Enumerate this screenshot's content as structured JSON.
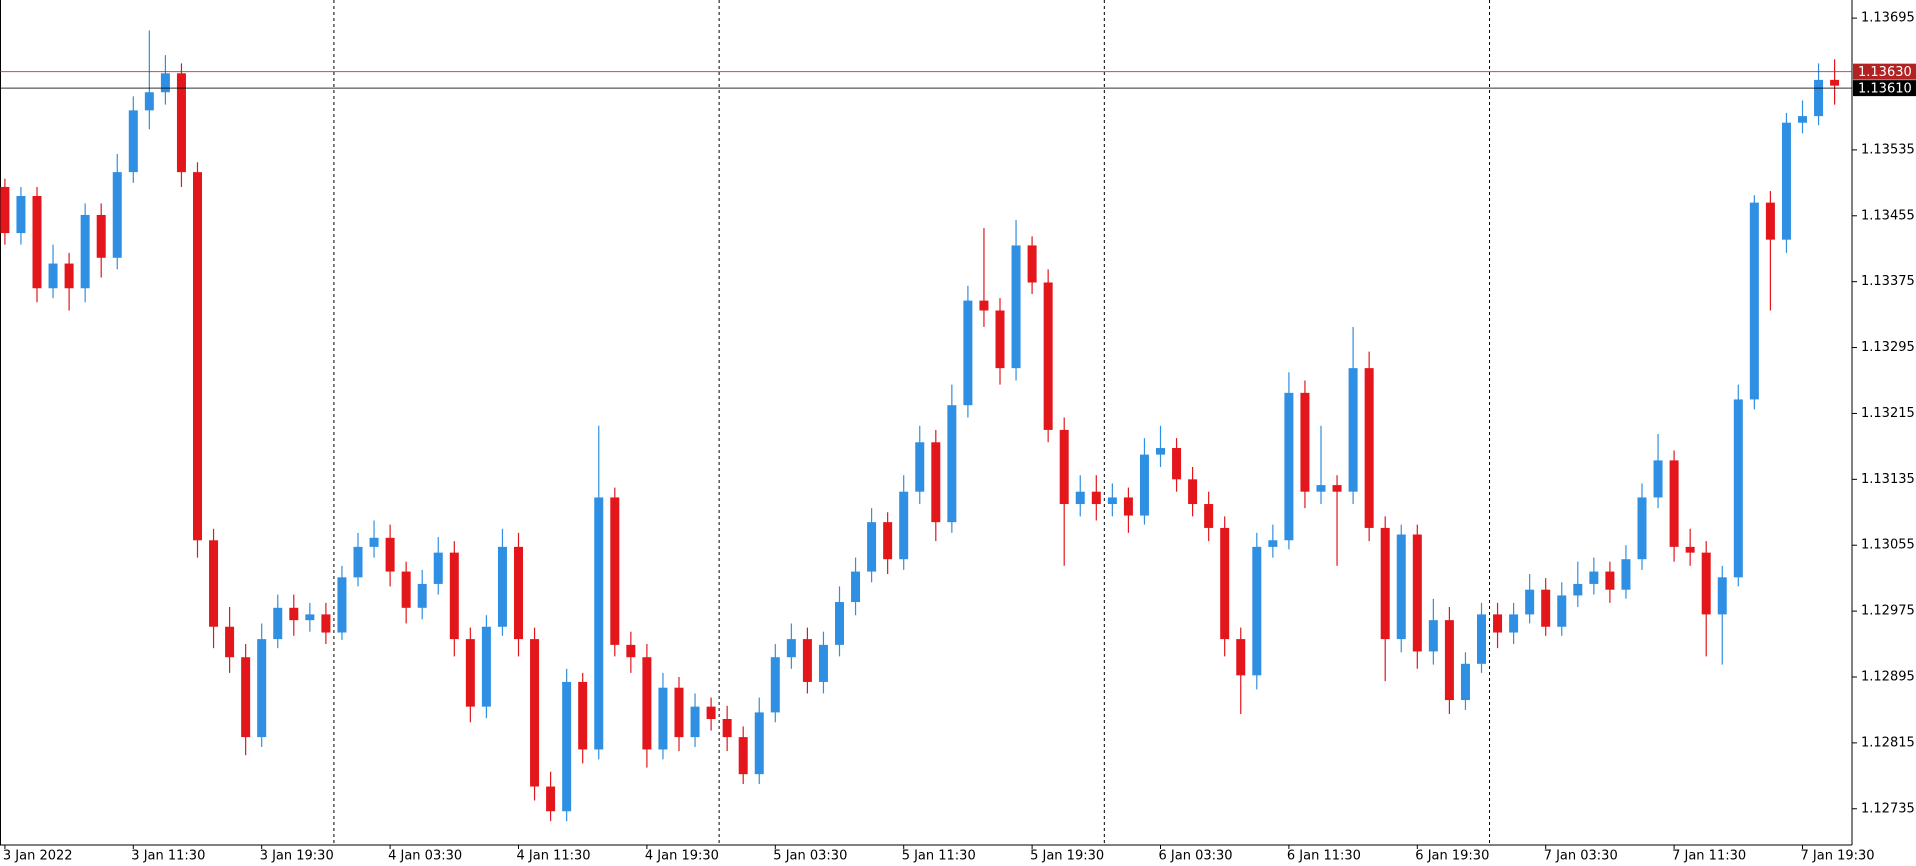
{
  "chart_data": {
    "type": "candlestick",
    "categories": [
      "3 Jan 2022",
      null,
      null,
      null,
      null,
      null,
      null,
      null,
      "3 Jan 11:30",
      null,
      null,
      null,
      null,
      null,
      null,
      null,
      "3 Jan 19:30",
      null,
      null,
      null,
      null,
      null,
      null,
      null,
      "4 Jan 03:30",
      null,
      null,
      null,
      null,
      null,
      null,
      null,
      "4 Jan 11:30",
      null,
      null,
      null,
      null,
      null,
      null,
      null,
      "4 Jan 19:30",
      null,
      null,
      null,
      null,
      null,
      null,
      null,
      "5 Jan 03:30",
      null,
      null,
      null,
      null,
      null,
      null,
      null,
      "5 Jan 11:30",
      null,
      null,
      null,
      null,
      null,
      null,
      null,
      "5 Jan 19:30",
      null,
      null,
      null,
      null,
      null,
      null,
      null,
      "6 Jan 03:30",
      null,
      null,
      null,
      null,
      null,
      null,
      null,
      "6 Jan 11:30",
      null,
      null,
      null,
      null,
      null,
      null,
      null,
      "6 Jan 19:30",
      null,
      null,
      null,
      null,
      null,
      null,
      null,
      "7 Jan 03:30",
      null,
      null,
      null,
      null,
      null,
      null,
      null,
      "7 Jan 11:30",
      null,
      null,
      null,
      null,
      null,
      null,
      null,
      "7 Jan 19:30",
      null,
      null
    ],
    "open": [
      1.1349,
      1.13434,
      1.13479,
      1.13367,
      1.13397,
      1.13367,
      1.13456,
      1.13404,
      1.13508,
      1.13583,
      1.13605,
      1.13628,
      1.13508,
      1.13061,
      1.12956,
      1.12919,
      1.12822,
      1.12941,
      1.12979,
      1.12964,
      1.12971,
      1.12949,
      1.13016,
      1.13053,
      1.13064,
      1.13023,
      1.12979,
      1.13008,
      1.13046,
      1.12941,
      1.12859,
      1.12956,
      1.13053,
      1.12941,
      1.12762,
      1.12732,
      1.12889,
      1.12807,
      1.13113,
      1.12934,
      1.12919,
      1.12807,
      1.12882,
      1.12822,
      1.12859,
      1.12844,
      1.12822,
      1.12777,
      1.12852,
      1.12919,
      1.12941,
      1.12889,
      1.12934,
      1.12986,
      1.13023,
      1.13083,
      1.13038,
      1.1312,
      1.1318,
      1.13083,
      1.13225,
      1.13352,
      1.1334,
      1.1327,
      1.13419,
      1.13374,
      1.13195,
      1.13105,
      1.1312,
      1.13105,
      1.13113,
      1.13091,
      1.13165,
      1.13173,
      1.13135,
      1.13105,
      1.13076,
      1.12941,
      1.12897,
      1.13053,
      1.13061,
      1.1324,
      1.1312,
      1.13128,
      1.1312,
      1.1327,
      1.13076,
      1.12941,
      1.13068,
      1.12926,
      1.12964,
      1.12867,
      1.12911,
      1.12971,
      1.12949,
      1.12971,
      1.13001,
      1.12956,
      1.12994,
      1.13008,
      1.13023,
      1.13001,
      1.13038,
      1.13113,
      1.13158,
      1.13053,
      1.13046,
      1.12971,
      1.13016,
      1.13232,
      1.13471,
      1.13426,
      1.13568,
      1.13576,
      1.1362
    ],
    "high": [
      1.135,
      1.1349,
      1.1349,
      1.1342,
      1.1341,
      1.1347,
      1.1347,
      1.1353,
      1.136,
      1.1368,
      1.1365,
      1.1364,
      1.1352,
      1.13075,
      1.1298,
      1.12935,
      1.1296,
      1.12995,
      1.12995,
      1.12985,
      1.12985,
      1.1303,
      1.1307,
      1.13085,
      1.1308,
      1.13035,
      1.13025,
      1.13065,
      1.1306,
      1.12955,
      1.1297,
      1.13075,
      1.1307,
      1.12955,
      1.1278,
      1.12905,
      1.129,
      1.132,
      1.13125,
      1.1295,
      1.12935,
      1.129,
      1.12895,
      1.12875,
      1.1287,
      1.1286,
      1.12835,
      1.1287,
      1.12935,
      1.1296,
      1.12955,
      1.1295,
      1.13005,
      1.1304,
      1.131,
      1.13095,
      1.1314,
      1.132,
      1.13195,
      1.1325,
      1.1337,
      1.1344,
      1.13355,
      1.1345,
      1.1343,
      1.1339,
      1.1321,
      1.1314,
      1.1314,
      1.1313,
      1.13125,
      1.13185,
      1.132,
      1.13185,
      1.1315,
      1.1312,
      1.1309,
      1.12955,
      1.1307,
      1.1308,
      1.13265,
      1.13255,
      1.132,
      1.1314,
      1.1332,
      1.1329,
      1.1309,
      1.1308,
      1.1308,
      1.1299,
      1.1298,
      1.12925,
      1.12985,
      1.12985,
      1.12985,
      1.1302,
      1.13015,
      1.1301,
      1.13035,
      1.1304,
      1.13035,
      1.13055,
      1.1313,
      1.1319,
      1.1317,
      1.13075,
      1.1306,
      1.1303,
      1.1325,
      1.1348,
      1.13485,
      1.1358,
      1.13595,
      1.1364,
      1.13645
    ],
    "low": [
      1.1342,
      1.1342,
      1.1335,
      1.13355,
      1.1334,
      1.1335,
      1.1338,
      1.1339,
      1.13495,
      1.1356,
      1.1359,
      1.1349,
      1.1304,
      1.1293,
      1.129,
      1.128,
      1.1281,
      1.1293,
      1.12945,
      1.1295,
      1.12935,
      1.1294,
      1.13005,
      1.1304,
      1.13005,
      1.1296,
      1.12965,
      1.12995,
      1.1292,
      1.1284,
      1.12845,
      1.12945,
      1.1292,
      1.12745,
      1.1272,
      1.1272,
      1.1279,
      1.12795,
      1.1292,
      1.129,
      1.12785,
      1.12795,
      1.12805,
      1.1281,
      1.1283,
      1.12805,
      1.12765,
      1.12765,
      1.1284,
      1.12905,
      1.12875,
      1.12875,
      1.1292,
      1.1297,
      1.1301,
      1.1302,
      1.13025,
      1.13105,
      1.1306,
      1.1307,
      1.1321,
      1.1332,
      1.1325,
      1.13255,
      1.1336,
      1.1318,
      1.1303,
      1.1309,
      1.13085,
      1.1309,
      1.1307,
      1.1308,
      1.1315,
      1.1312,
      1.1309,
      1.1306,
      1.1292,
      1.1285,
      1.1288,
      1.1304,
      1.1305,
      1.131,
      1.13105,
      1.1303,
      1.13105,
      1.1306,
      1.1289,
      1.12925,
      1.12905,
      1.1291,
      1.1285,
      1.12855,
      1.129,
      1.1293,
      1.12935,
      1.1296,
      1.12945,
      1.12945,
      1.1298,
      1.12995,
      1.12985,
      1.1299,
      1.13025,
      1.131,
      1.13035,
      1.1303,
      1.1292,
      1.1291,
      1.13005,
      1.1322,
      1.1334,
      1.1341,
      1.13555,
      1.13565,
      1.1359
    ],
    "close": [
      1.13434,
      1.13479,
      1.13367,
      1.13397,
      1.13367,
      1.13456,
      1.13404,
      1.13508,
      1.13583,
      1.13605,
      1.13628,
      1.13508,
      1.13061,
      1.12956,
      1.12919,
      1.12822,
      1.12941,
      1.12979,
      1.12964,
      1.12971,
      1.12949,
      1.13016,
      1.13053,
      1.13064,
      1.13023,
      1.12979,
      1.13008,
      1.13046,
      1.12941,
      1.12859,
      1.12956,
      1.13053,
      1.12941,
      1.12762,
      1.12732,
      1.12889,
      1.12807,
      1.13113,
      1.12934,
      1.12919,
      1.12807,
      1.12882,
      1.12822,
      1.12859,
      1.12844,
      1.12822,
      1.12777,
      1.12852,
      1.12919,
      1.12941,
      1.12889,
      1.12934,
      1.12986,
      1.13023,
      1.13083,
      1.13038,
      1.1312,
      1.1318,
      1.13083,
      1.13225,
      1.13352,
      1.1334,
      1.1327,
      1.13419,
      1.13374,
      1.13195,
      1.13105,
      1.1312,
      1.13105,
      1.13113,
      1.13091,
      1.13165,
      1.13173,
      1.13135,
      1.13105,
      1.13076,
      1.12941,
      1.12897,
      1.13053,
      1.13061,
      1.1324,
      1.1312,
      1.13128,
      1.1312,
      1.1327,
      1.13076,
      1.12941,
      1.13068,
      1.12926,
      1.12964,
      1.12867,
      1.12911,
      1.12971,
      1.12949,
      1.12971,
      1.13001,
      1.12956,
      1.12994,
      1.13008,
      1.13023,
      1.13001,
      1.13038,
      1.13113,
      1.13158,
      1.13053,
      1.13046,
      1.12971,
      1.13016,
      1.13232,
      1.13471,
      1.13426,
      1.13568,
      1.13576,
      1.1362,
      1.13613
    ],
    "up_color": "#2f8fe3",
    "down_color": "#e3161b",
    "ylim": [
      1.12691,
      1.13717
    ],
    "yticks": [
      1.13695,
      1.13535,
      1.13455,
      1.13375,
      1.13295,
      1.13215,
      1.13135,
      1.13055,
      1.12975,
      1.12895,
      1.12815,
      1.12735
    ],
    "price_lines": [
      {
        "value": 1.1363,
        "label": "1.13630",
        "color": "#b22222"
      },
      {
        "value": 1.1361,
        "label": "1.13610",
        "color": "#000000"
      }
    ]
  }
}
